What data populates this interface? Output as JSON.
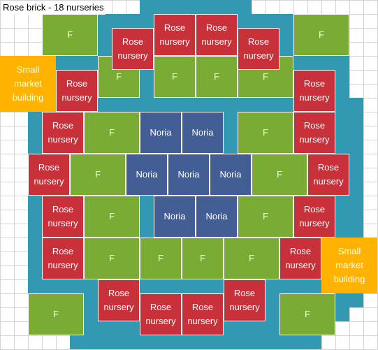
{
  "title": "Rose brick - 18 nurseries",
  "colors": {
    "border": "#3399b3",
    "field": "#7aab35",
    "rose": "#c8303a",
    "noria": "#435e94",
    "market": "#ffb300"
  },
  "labels": {
    "field": "F",
    "rose": "Rose\nnursery",
    "noria": "Noria",
    "market": "Small\nmarket\nbuilding"
  }
}
